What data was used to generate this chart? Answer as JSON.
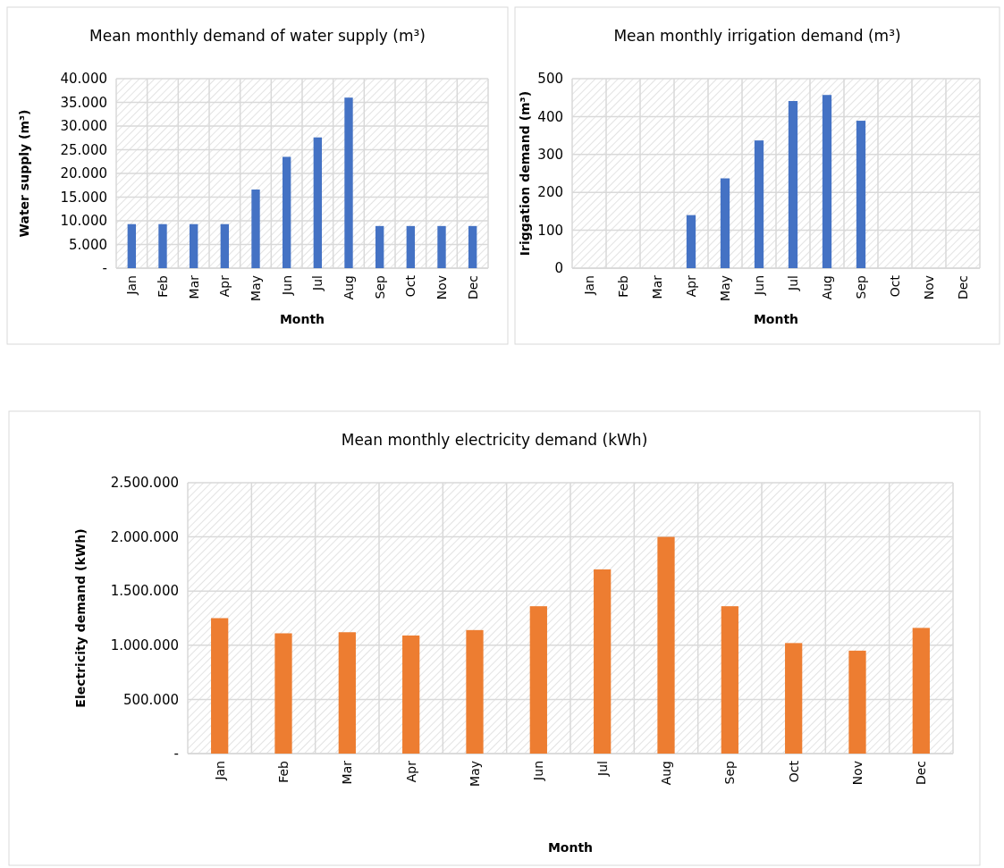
{
  "chart_data": [
    {
      "type": "bar",
      "title": "Mean monthly demand of water supply (m³)",
      "xlabel": "Month",
      "ylabel": "Water supply (m³)",
      "categories": [
        "Jan",
        "Feb",
        "Mar",
        "Apr",
        "May",
        "Jun",
        "Jul",
        "Aug",
        "Sep",
        "Oct",
        "Nov",
        "Dec"
      ],
      "values": [
        9300,
        9300,
        9300,
        9300,
        16600,
        23500,
        27600,
        36000,
        8900,
        8900,
        8900,
        8900
      ],
      "color": "#4472c4",
      "ylim": [
        0,
        40000
      ],
      "yticks": [
        {
          "value": 0,
          "label": "-"
        },
        {
          "value": 5000,
          "label": "5.000"
        },
        {
          "value": 10000,
          "label": "10.000"
        },
        {
          "value": 15000,
          "label": "15.000"
        },
        {
          "value": 20000,
          "label": "20.000"
        },
        {
          "value": 25000,
          "label": "25.000"
        },
        {
          "value": 30000,
          "label": "30.000"
        },
        {
          "value": 35000,
          "label": "35.000"
        },
        {
          "value": 40000,
          "label": "40.000"
        }
      ],
      "grid": true
    },
    {
      "type": "bar",
      "title": "Mean monthly irrigation demand (m³)",
      "xlabel": "Month",
      "ylabel": "Iriggation demand (m³)",
      "categories": [
        "Jan",
        "Feb",
        "Mar",
        "Apr",
        "May",
        "Jun",
        "Jul",
        "Aug",
        "Sep",
        "Oct",
        "Nov",
        "Dec"
      ],
      "values": [
        0,
        0,
        0,
        140,
        237,
        337,
        441,
        457,
        389,
        0,
        0,
        0
      ],
      "color": "#4472c4",
      "ylim": [
        0,
        500
      ],
      "yticks": [
        0,
        100,
        200,
        300,
        400,
        500
      ],
      "grid": true
    },
    {
      "type": "bar",
      "title": "Mean monthly electricity demand (kWh)",
      "xlabel": "Month",
      "ylabel": "Electricity demand (kWh)",
      "categories": [
        "Jan",
        "Feb",
        "Mar",
        "Apr",
        "May",
        "Jun",
        "Jul",
        "Aug",
        "Sep",
        "Oct",
        "Nov",
        "Dec"
      ],
      "values": [
        1250000,
        1110000,
        1120000,
        1090000,
        1140000,
        1360000,
        1700000,
        2000000,
        1360000,
        1020000,
        950000,
        1160000
      ],
      "color": "#ed7d31",
      "ylim": [
        0,
        2500000
      ],
      "yticks": [
        {
          "value": 0,
          "label": "-"
        },
        {
          "value": 500000,
          "label": "500.000"
        },
        {
          "value": 1000000,
          "label": "1.000.000"
        },
        {
          "value": 1500000,
          "label": "1.500.000"
        },
        {
          "value": 2000000,
          "label": "2.000.000"
        },
        {
          "value": 2500000,
          "label": "2.500.000"
        }
      ],
      "grid": true
    }
  ]
}
